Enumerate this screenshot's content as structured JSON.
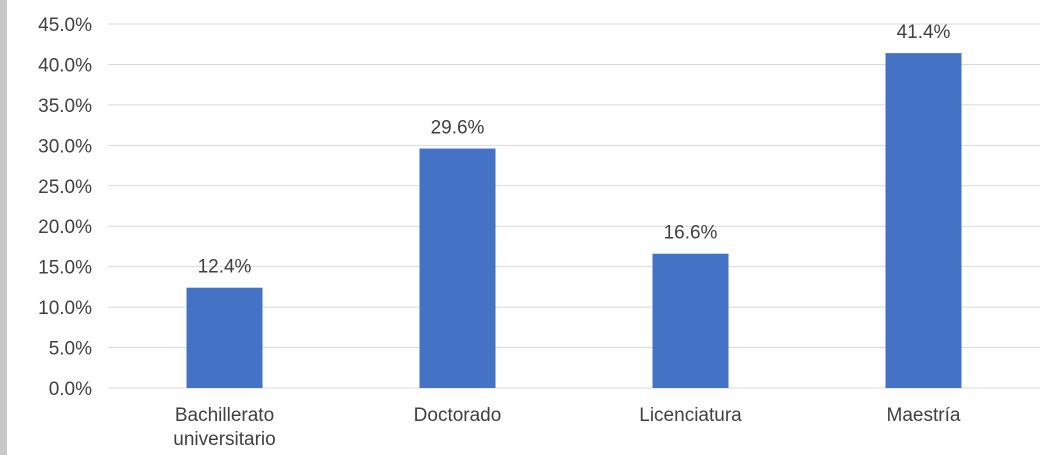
{
  "chart_data": {
    "type": "bar",
    "categories": [
      [
        "Bachillerato",
        "universitario"
      ],
      [
        "Doctorado"
      ],
      [
        "Licenciatura"
      ],
      [
        "Maestría"
      ]
    ],
    "values": [
      12.4,
      29.6,
      16.6,
      41.4
    ],
    "data_labels": [
      "12.4%",
      "29.6%",
      "16.6%",
      "41.4%"
    ],
    "ylim": [
      0,
      45
    ],
    "yticks": [
      0,
      5,
      10,
      15,
      20,
      25,
      30,
      35,
      40,
      45
    ],
    "ytick_labels": [
      "0.0%",
      "5.0%",
      "10.0%",
      "15.0%",
      "20.0%",
      "25.0%",
      "30.0%",
      "35.0%",
      "40.0%",
      "45.0%"
    ],
    "title": "",
    "xlabel": "",
    "ylabel": "",
    "grid": true,
    "legend": "none",
    "colors": {
      "bar": "#4472C4",
      "grid": "#d9d9d9",
      "text": "#404040"
    }
  }
}
